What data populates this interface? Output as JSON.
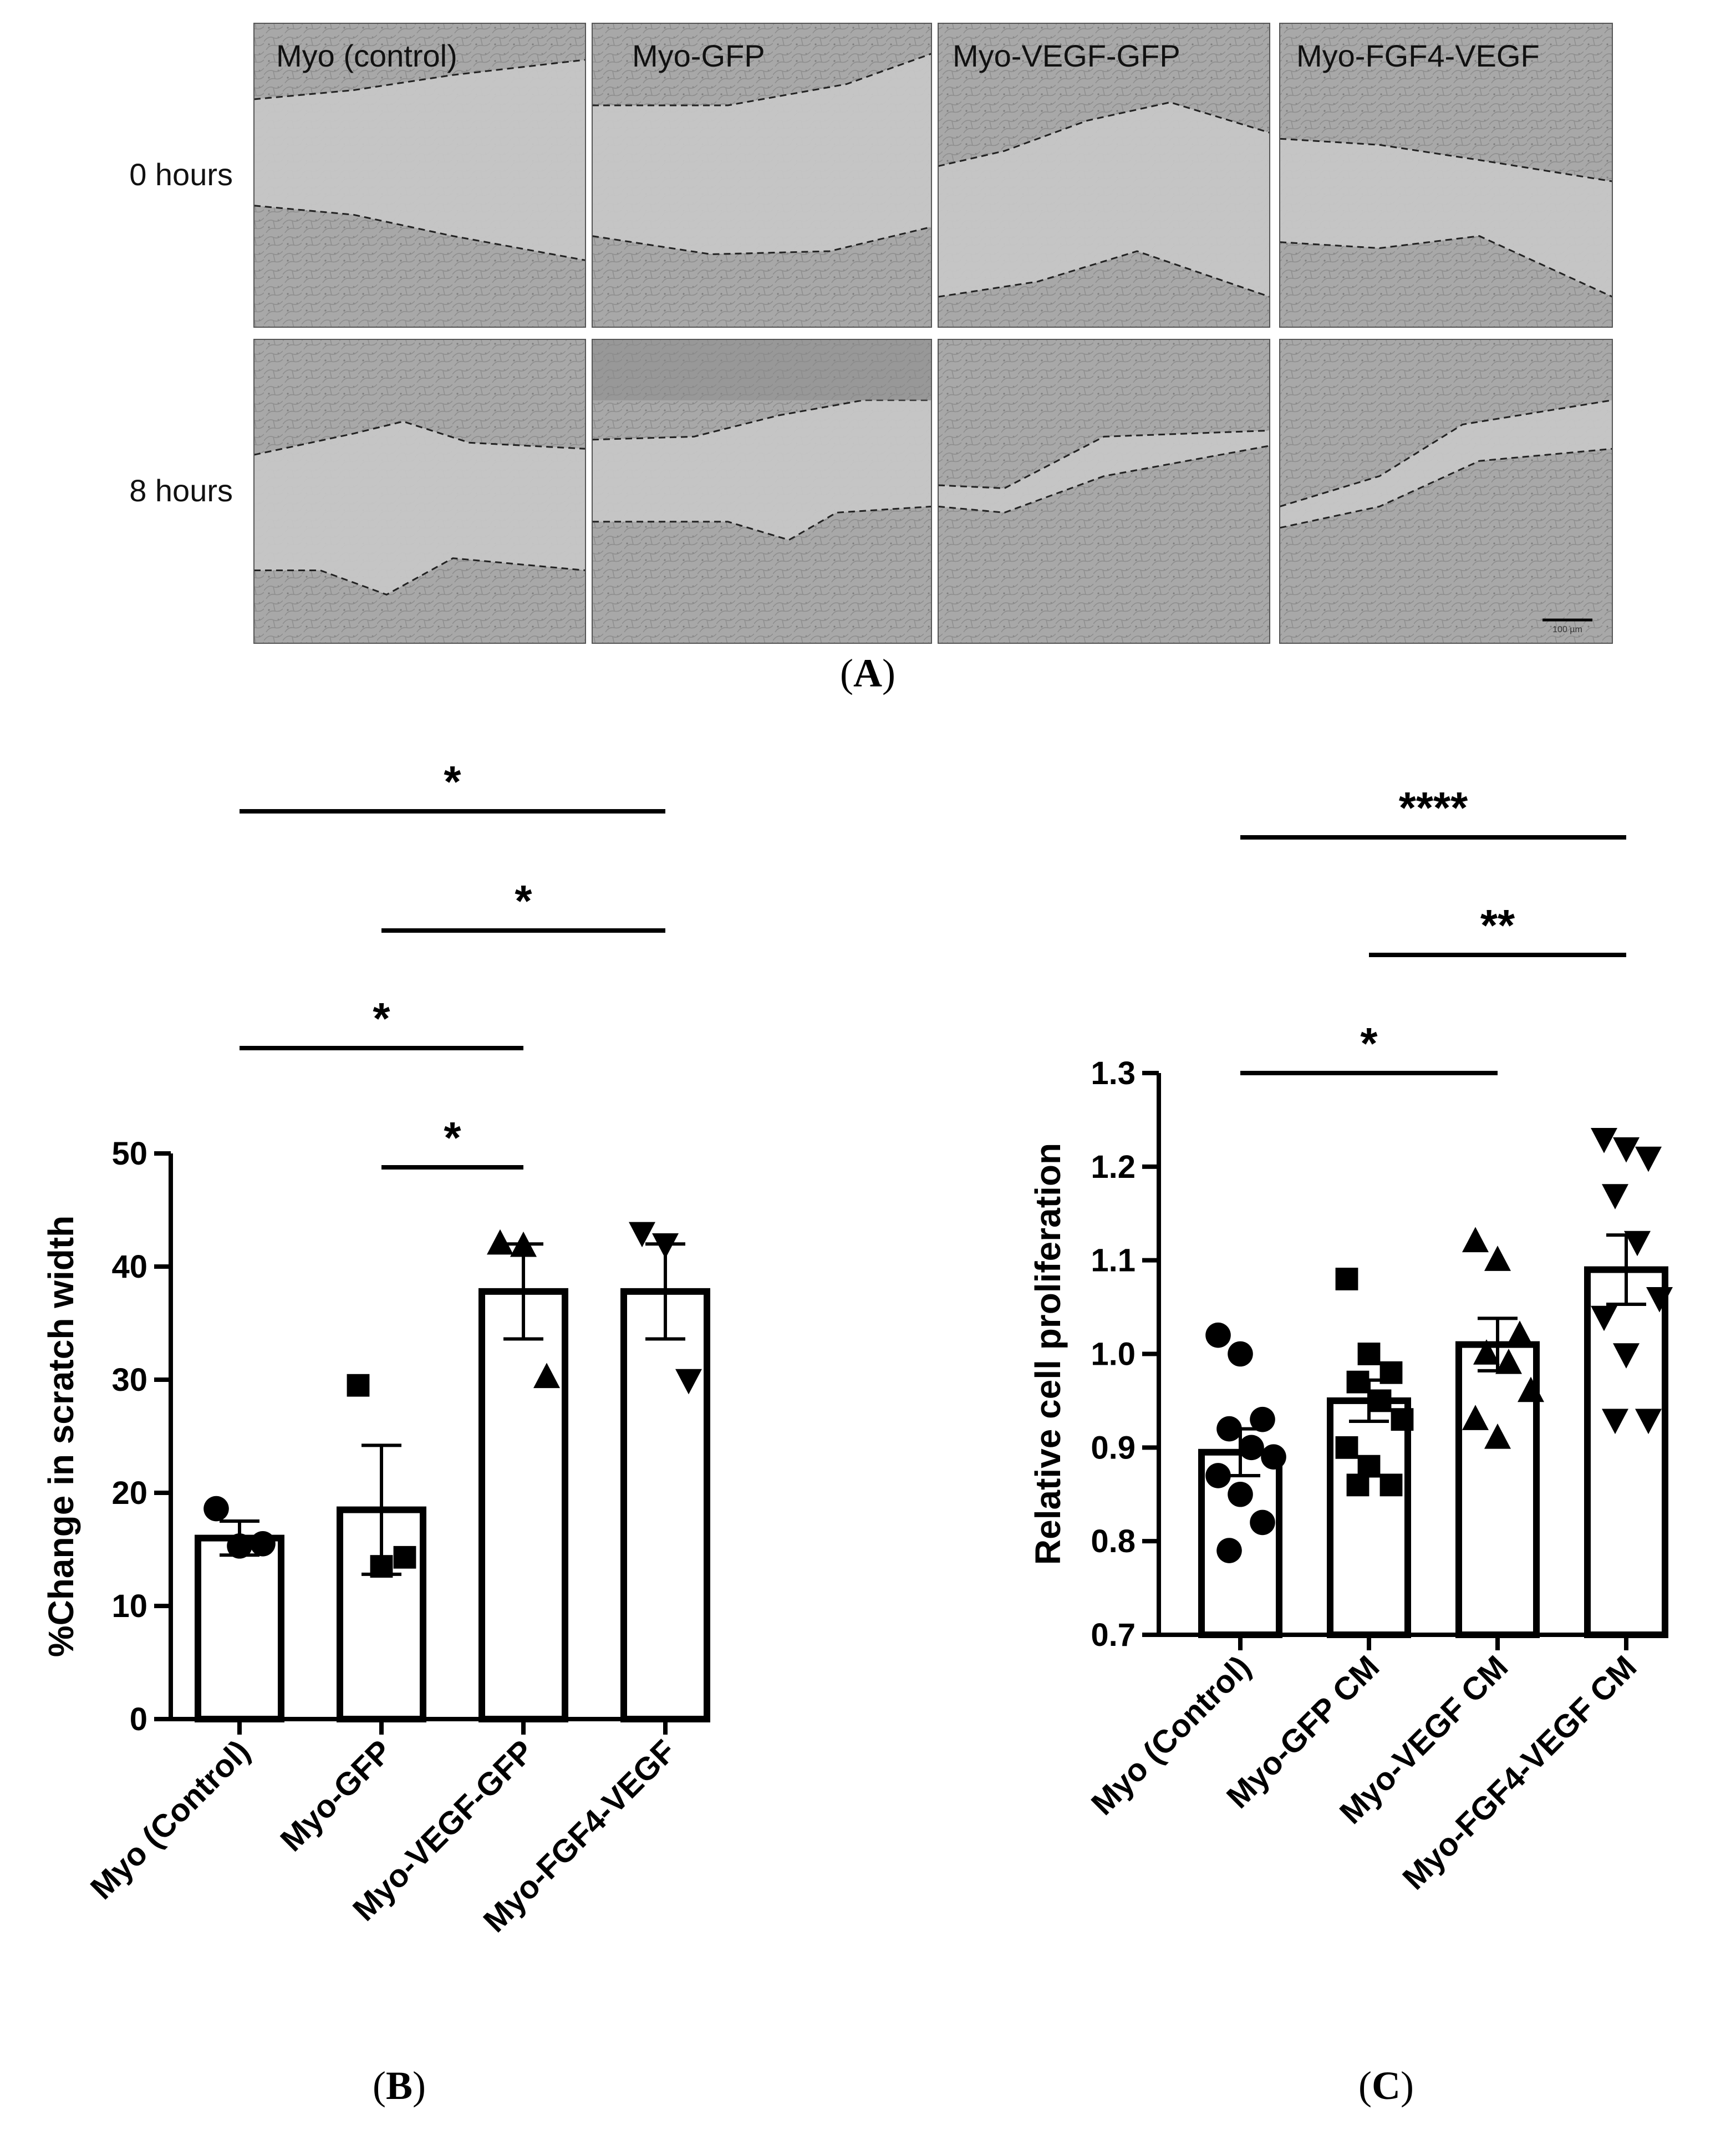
{
  "panel_a": {
    "label": "A",
    "columns": [
      "Myo (control)",
      "Myo-GFP",
      "Myo-VEGF-GFP",
      "Myo-FGF4-VEGF"
    ],
    "rows": [
      "0 hours",
      "8 hours"
    ],
    "scale_bar_text": "100 µm",
    "colors": {
      "image_bg": "#b9b9b9",
      "cells": "#a9a9a9",
      "gap": "#c8c8c8",
      "border": "#555555"
    }
  },
  "chart_data": [
    {
      "panel": "B",
      "type": "bar",
      "ylabel": "%Change in scratch width",
      "xlabel": "",
      "ylim": [
        0,
        50
      ],
      "yticks": [
        "0",
        "10",
        "20",
        "30",
        "40",
        "50"
      ],
      "categories": [
        "Myo (Control)",
        "Myo-GFP",
        "Myo-VEGF-GFP",
        "Myo-FGF4-VEGF"
      ],
      "values": [
        16,
        18.5,
        37.8,
        37.8
      ],
      "errors": [
        1.5,
        5.7,
        4.2,
        4.2
      ],
      "markers": [
        "circle",
        "square",
        "triangle-up",
        "triangle-down"
      ],
      "points": [
        [
          18.6,
          15.3,
          15.5
        ],
        [
          29.5,
          13.5,
          14.3
        ],
        [
          42,
          41.8,
          30.2
        ],
        [
          43,
          42,
          30
        ]
      ],
      "significance": [
        {
          "from": 0,
          "to": 3,
          "label": "*"
        },
        {
          "from": 1,
          "to": 3,
          "label": "*"
        },
        {
          "from": 0,
          "to": 2,
          "label": "*"
        },
        {
          "from": 1,
          "to": 2,
          "label": "*"
        }
      ],
      "colors": {
        "bar_fill": "#ffffff",
        "stroke": "#000000"
      }
    },
    {
      "panel": "C",
      "type": "bar",
      "ylabel": "Relative cell proliferation",
      "xlabel": "",
      "ylim": [
        0.7,
        1.3
      ],
      "yticks": [
        "0.7",
        "0.8",
        "0.9",
        "1.0",
        "1.1",
        "1.2",
        "1.3"
      ],
      "categories": [
        "Myo (Control)",
        "Myo-GFP CM",
        "Myo-VEGF CM",
        "Myo-FGF4-VEGF CM"
      ],
      "values": [
        0.895,
        0.95,
        1.01,
        1.09
      ],
      "errors": [
        0.025,
        0.022,
        0.028,
        0.037
      ],
      "markers": [
        "circle",
        "square",
        "triangle-up",
        "triangle-down"
      ],
      "points": [
        [
          1.02,
          1.0,
          0.93,
          0.92,
          0.9,
          0.89,
          0.87,
          0.85,
          0.82,
          0.79
        ],
        [
          1.08,
          1.0,
          0.98,
          0.97,
          0.95,
          0.93,
          0.9,
          0.88,
          0.86,
          0.86
        ],
        [
          1.12,
          1.1,
          1.02,
          1.0,
          0.99,
          0.96,
          0.93,
          0.91
        ],
        [
          1.23,
          1.22,
          1.21,
          1.17,
          1.12,
          1.06,
          1.04,
          1.0,
          0.93,
          0.93
        ]
      ],
      "significance": [
        {
          "from": 0,
          "to": 3,
          "label": "****"
        },
        {
          "from": 1,
          "to": 3,
          "label": "**"
        },
        {
          "from": 0,
          "to": 2,
          "label": "*"
        }
      ],
      "colors": {
        "bar_fill": "#ffffff",
        "stroke": "#000000"
      }
    }
  ],
  "panel_labels": {
    "b": "B",
    "c": "C"
  }
}
